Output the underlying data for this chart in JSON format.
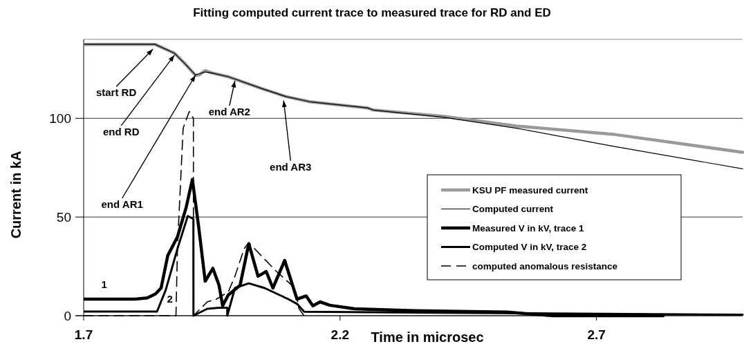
{
  "chart_data": {
    "type": "line",
    "title": "Fitting computed current trace to measured trace for RD and ED",
    "xlabel": "Time in microsec",
    "ylabel": "Current  in kA",
    "xlim": [
      1.7,
      2.985
    ],
    "xticks": [
      1.7,
      2.2,
      2.7
    ],
    "ylim": [
      0,
      140
    ],
    "yticks": [
      0,
      50,
      100
    ],
    "grid": "y",
    "legend": "right",
    "marker": "none",
    "series": [
      {
        "name": "KSU PF measured current",
        "color": "#999999",
        "x": [
          1.7,
          1.78,
          1.839,
          1.877,
          1.9,
          1.918,
          1.925,
          1.937,
          1.95,
          1.983,
          2.048,
          2.095,
          2.141,
          2.253,
          2.265,
          2.403,
          2.544,
          2.73,
          2.985
        ],
        "values": [
          137.5,
          137.5,
          137.5,
          133,
          127,
          121.8,
          122,
          124.2,
          123,
          121,
          115,
          111,
          108.4,
          105.3,
          104.2,
          101,
          96.1,
          92,
          82.8
        ]
      },
      {
        "name": "Computed current",
        "color": "#000000",
        "x": [
          1.7,
          1.78,
          1.839,
          1.877,
          1.9,
          1.918,
          1.925,
          1.937,
          1.95,
          1.983,
          2.048,
          2.095,
          2.141,
          2.253,
          2.265,
          2.403,
          2.544,
          2.73,
          2.985
        ],
        "values": [
          137.5,
          137.5,
          137.5,
          133,
          127,
          122,
          122.5,
          123.5,
          123,
          121,
          115,
          111,
          108.4,
          105.3,
          104.2,
          100.5,
          95,
          86,
          74.4
        ]
      },
      {
        "name": "Measured V in kV, trace 1",
        "color": "#000000",
        "x": [
          1.7,
          1.8,
          1.824,
          1.84,
          1.851,
          1.864,
          1.883,
          1.9,
          1.912,
          1.924,
          1.937,
          1.952,
          1.964,
          1.971,
          1.982,
          2.005,
          2.022,
          2.04,
          2.056,
          2.069,
          2.092,
          2.116,
          2.134,
          2.147,
          2.161,
          2.18,
          2.228,
          2.345,
          2.525,
          2.615,
          2.83
        ],
        "values": [
          8.4,
          8.4,
          9,
          11,
          14,
          30.5,
          40,
          55,
          69,
          45.6,
          17.5,
          24,
          15.4,
          5,
          10.5,
          15.4,
          36.5,
          20,
          22.4,
          14,
          28,
          8.4,
          10,
          5,
          7,
          5.3,
          3.5,
          2.5,
          1.8,
          0,
          0
        ]
      },
      {
        "name": "Computed V in kV, trace 2",
        "color": "#000000",
        "x": [
          1.7,
          1.843,
          1.86,
          1.883,
          1.903,
          1.914,
          1.9141,
          1.941,
          1.964,
          1.98,
          1.9801,
          1.995,
          2.022,
          2.053,
          2.099,
          2.116,
          2.13,
          2.4,
          2.985
        ],
        "values": [
          2.1,
          2.1,
          13,
          34,
          50.5,
          49,
          0,
          3.5,
          4,
          4,
          0,
          14,
          16.4,
          14,
          8.4,
          6,
          2,
          1.5,
          0.5
        ]
      },
      {
        "name": "computed anomalous resistance",
        "color": "#000000",
        "line_style": "dashed",
        "x": [
          1.7,
          1.88,
          1.883,
          1.894,
          1.906,
          1.914,
          1.9141,
          1.941,
          1.959,
          1.982,
          1.995,
          2.013,
          2.022,
          2.076,
          2.112,
          2.12,
          2.13
        ],
        "values": [
          0,
          0,
          35,
          95,
          103.5,
          100,
          0,
          7,
          8.4,
          12,
          20,
          34,
          37,
          22.4,
          14,
          3.5,
          0
        ]
      }
    ],
    "annotations": [
      {
        "text": "start RD",
        "x": 1.835,
        "y": 135
      },
      {
        "text": "end RD",
        "x": 1.877,
        "y": 132
      },
      {
        "text": "end AR1",
        "x": 1.918,
        "y": 121.8
      },
      {
        "text": "end AR2",
        "x": 1.995,
        "y": 119
      },
      {
        "text": "end AR3",
        "x": 2.09,
        "y": 109
      },
      {
        "text": "1",
        "x": 1.74,
        "y": 8.4
      },
      {
        "text": "2",
        "x": 1.86,
        "y": 13
      }
    ]
  }
}
